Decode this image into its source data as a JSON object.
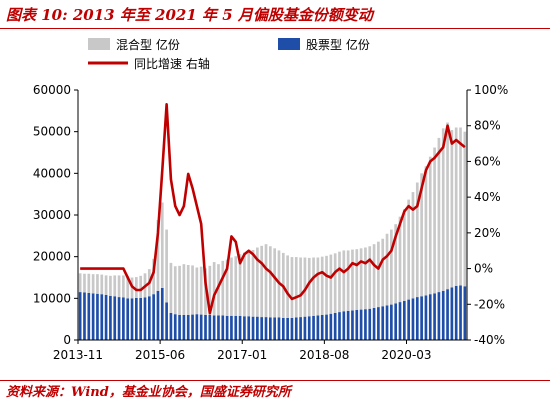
{
  "title": "图表 10:  2013 年至 2021 年 5 月偏股基金份额变动",
  "source": "资料来源：Wind，基金业协会，国盛证券研究所",
  "colors": {
    "mixed": "#c8c8c8",
    "stock": "#1f4ea8",
    "yoy": "#c00000",
    "accent": "#c00000"
  },
  "chart_data": {
    "type": "bar",
    "title": "",
    "x_ticks": [
      "2013-11",
      "2015-06",
      "2017-01",
      "2018-08",
      "2020-03"
    ],
    "x_tick_index": [
      0,
      19,
      38,
      57,
      76
    ],
    "legend": {
      "placement": "top",
      "entries": [
        "混合型 亿份",
        "股票型 亿份",
        "同比增速 右轴"
      ]
    },
    "y_left": {
      "lim": [
        0,
        60000
      ],
      "ticks": [
        0,
        10000,
        20000,
        30000,
        40000,
        50000,
        60000
      ]
    },
    "y_right": {
      "lim": [
        -40,
        100
      ],
      "ticks": [
        "-40%",
        "-20%",
        "0%",
        "20%",
        "40%",
        "60%",
        "80%",
        "100%"
      ],
      "tick_values": [
        -40,
        -20,
        0,
        20,
        40,
        60,
        80,
        100
      ]
    },
    "stacked": true,
    "series": [
      {
        "name": "股票型 亿份",
        "kind": "bar",
        "axis": "left",
        "values": [
          11500,
          11400,
          11300,
          11200,
          11100,
          11000,
          10800,
          10600,
          10500,
          10300,
          10200,
          10000,
          10000,
          10100,
          10100,
          10200,
          10500,
          11000,
          11800,
          12500,
          9000,
          6500,
          6200,
          6000,
          6000,
          6000,
          6100,
          6200,
          6100,
          6000,
          6000,
          5900,
          5900,
          5900,
          5800,
          5800,
          5800,
          5800,
          5700,
          5700,
          5600,
          5600,
          5500,
          5500,
          5400,
          5400,
          5400,
          5300,
          5300,
          5300,
          5400,
          5500,
          5600,
          5700,
          5800,
          5900,
          6000,
          6100,
          6300,
          6500,
          6700,
          6900,
          7000,
          7100,
          7200,
          7300,
          7400,
          7500,
          7700,
          7900,
          8100,
          8300,
          8500,
          8800,
          9100,
          9400,
          9700,
          10000,
          10300,
          10500,
          10700,
          11000,
          11200,
          11500,
          11800,
          12200,
          12600,
          13000,
          13100,
          12900
        ]
      },
      {
        "name": "混合型 亿份",
        "kind": "bar",
        "axis": "left",
        "values": [
          4500,
          4500,
          4600,
          4600,
          4700,
          4700,
          4700,
          4800,
          5000,
          5200,
          5300,
          5300,
          5000,
          5000,
          5300,
          5800,
          6500,
          8500,
          17000,
          20500,
          17500,
          12000,
          11500,
          11800,
          12200,
          12000,
          11800,
          11200,
          11500,
          11200,
          11800,
          12800,
          12300,
          13100,
          13500,
          14000,
          14300,
          14800,
          15300,
          15700,
          16000,
          16600,
          17100,
          17500,
          17100,
          16600,
          16100,
          15600,
          15000,
          14600,
          14500,
          14300,
          14200,
          14000,
          14000,
          13900,
          14000,
          14100,
          14200,
          14300,
          14500,
          14600,
          14500,
          14600,
          14600,
          14700,
          14800,
          15000,
          15300,
          15700,
          16200,
          17200,
          18000,
          19000,
          20500,
          22000,
          24000,
          25500,
          27500,
          29500,
          31000,
          33000,
          35000,
          37000,
          39000,
          40000,
          37800,
          38000,
          37900,
          37100
        ]
      },
      {
        "name": "同比增速 右轴",
        "kind": "line",
        "axis": "right",
        "values": [
          0,
          0,
          0,
          0,
          0,
          0,
          0,
          0,
          0,
          0,
          0,
          -5,
          -10,
          -12,
          -12,
          -10,
          -8,
          -2,
          20,
          55,
          92,
          50,
          35,
          30,
          35,
          53,
          45,
          35,
          25,
          -8,
          -25,
          -15,
          -10,
          -5,
          0,
          18,
          15,
          3,
          8,
          10,
          8,
          5,
          3,
          0,
          -2,
          -5,
          -8,
          -10,
          -14,
          -17,
          -16,
          -15,
          -12,
          -8,
          -5,
          -3,
          -2,
          -4,
          -5,
          -2,
          0,
          -2,
          0,
          3,
          2,
          4,
          3,
          5,
          2,
          0,
          5,
          7,
          10,
          18,
          25,
          32,
          35,
          33,
          35,
          45,
          55,
          60,
          62,
          65,
          68,
          80,
          70,
          72,
          70,
          68
        ]
      }
    ]
  }
}
